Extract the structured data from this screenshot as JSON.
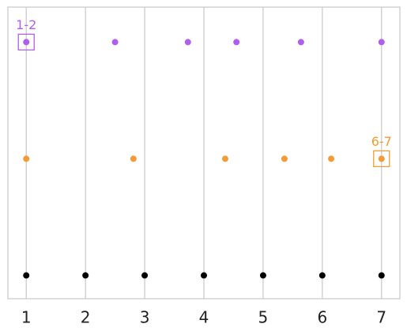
{
  "chart_data": {
    "type": "scatter",
    "xlim": [
      0.69,
      7.31
    ],
    "ylim": [
      -0.2,
      2.3
    ],
    "xticks": [
      1,
      2,
      3,
      4,
      5,
      6,
      7
    ],
    "grid": true,
    "series": [
      {
        "color": "#b05ef0",
        "x": [
          1,
          2.5,
          3.73,
          4.55,
          5.64,
          7
        ],
        "values": [
          2,
          2,
          2,
          2,
          2,
          2
        ]
      },
      {
        "color": "#f59a38",
        "x": [
          1,
          2.81,
          4.36,
          5.36,
          6.15,
          7
        ],
        "values": [
          1,
          1,
          1,
          1,
          1,
          1
        ]
      },
      {
        "color": "#000000",
        "x": [
          1,
          2,
          3,
          4,
          5,
          6,
          7
        ],
        "values": [
          0,
          0,
          0,
          0,
          0,
          0,
          0
        ]
      }
    ],
    "annotations": [
      {
        "text": "1-2",
        "x": 1,
        "y": 2,
        "color": "#b05ef0"
      },
      {
        "text": "6-7",
        "x": 7,
        "y": 1,
        "color": "#f59a38"
      }
    ]
  }
}
